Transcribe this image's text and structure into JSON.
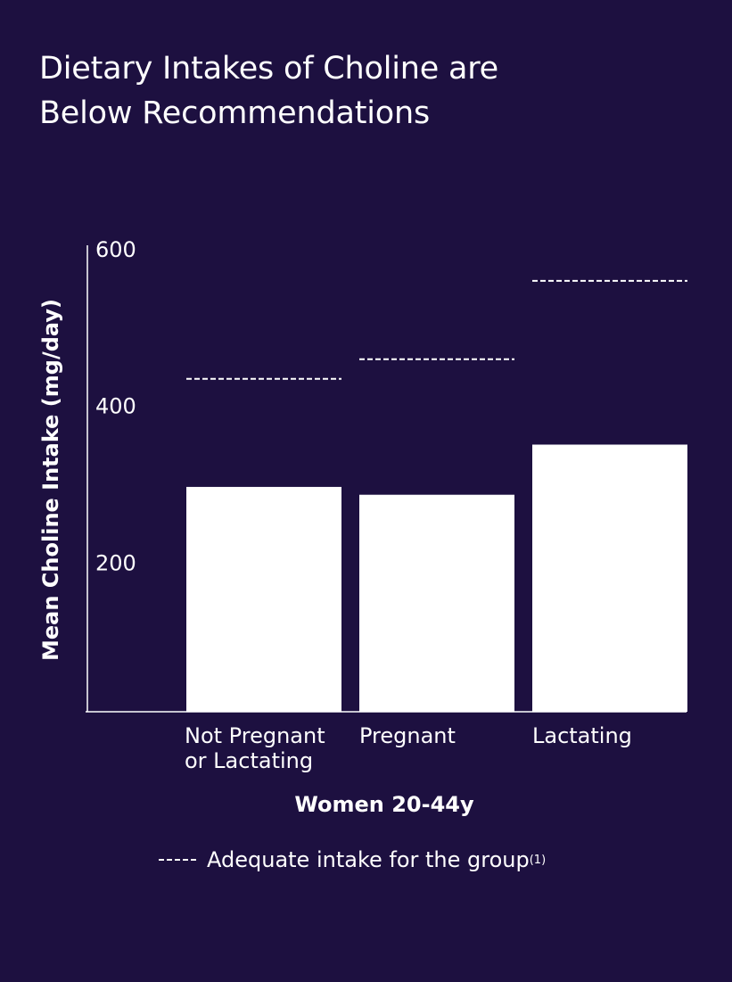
{
  "chart_data": {
    "type": "bar",
    "title": [
      "Dietary Intakes of Choline are",
      "Below Recommendations"
    ],
    "ylabel": "Mean Choline Intake (mg/day)",
    "xlabel": "Women 20-44y",
    "ylim": [
      0,
      600
    ],
    "yticks": [
      200,
      400,
      600
    ],
    "categories": [
      [
        "Not Pregnant",
        "or Lactating"
      ],
      [
        "Pregnant"
      ],
      [
        "Lactating"
      ]
    ],
    "values": [
      287,
      277,
      341
    ],
    "adequate_intake": [
      425,
      450,
      550
    ],
    "legend": {
      "label": "Adequate intake for the group",
      "superscript": "(1)"
    },
    "colors": {
      "background": "#1d1040",
      "bar": "#ffffff",
      "reference_line": "#ffffff"
    }
  }
}
